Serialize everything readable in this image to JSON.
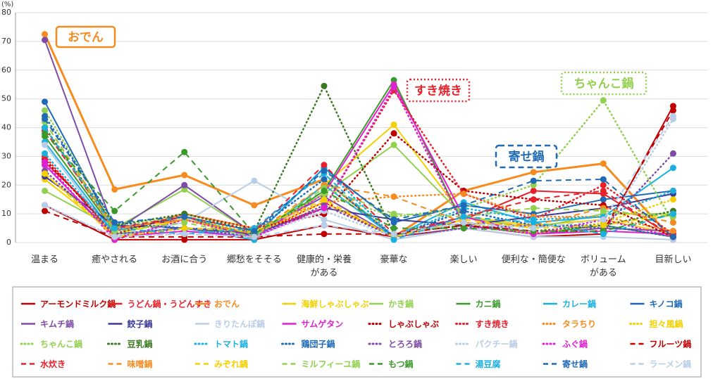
{
  "chart_data": {
    "type": "line",
    "y_unit": "(%)",
    "categories": [
      "温まる",
      "癒やされる",
      "お酒に合う",
      "郷愁をそそる",
      "健康的・栄養\nがある",
      "豪華な",
      "楽しい",
      "便利な・簡便な",
      "ボリューム\nがある",
      "目新しい"
    ],
    "ylim": [
      0,
      80
    ],
    "yticks": [
      0,
      10,
      20,
      30,
      40,
      50,
      60,
      70,
      80
    ],
    "grid": true,
    "annotations": [
      {
        "text": "おでん",
        "color": "#f68b1f",
        "style": "solid"
      },
      {
        "text": "すき焼き",
        "color": "#e8202a",
        "style": "dotted"
      },
      {
        "text": "ちゃんこ鍋",
        "color": "#92d050",
        "style": "dotted"
      },
      {
        "text": "寄せ鍋",
        "color": "#1f6ab5",
        "style": "dashed"
      }
    ],
    "series": [
      {
        "name": "アーモンドミルク鍋",
        "color": "#c00000",
        "style": "solid",
        "values": [
          13,
          1,
          1,
          1,
          6,
          2,
          5,
          2,
          3,
          47.5
        ]
      },
      {
        "name": "うどん鍋・うどんすき",
        "color": "#e8202a",
        "style": "solid",
        "values": [
          28,
          5,
          8,
          3,
          14,
          2,
          8,
          18,
          17,
          2
        ]
      },
      {
        "name": "おでん",
        "color": "#f68b1f",
        "style": "solid",
        "values": [
          72.5,
          18.5,
          23.5,
          13,
          22,
          2,
          18,
          24.5,
          27.5,
          1
        ]
      },
      {
        "name": "海鮮しゃぶしゃぶ",
        "color": "#f5d000",
        "style": "solid",
        "values": [
          22,
          3,
          8,
          2,
          20,
          41,
          9,
          6,
          8,
          3
        ]
      },
      {
        "name": "かき鍋",
        "color": "#92d050",
        "style": "solid",
        "values": [
          18,
          5,
          18.5,
          3,
          17,
          34,
          9,
          5,
          10,
          10
        ]
      },
      {
        "name": "カニ鍋",
        "color": "#3a9a2a",
        "style": "solid",
        "values": [
          37,
          4,
          9,
          2,
          18,
          56.5,
          6,
          3,
          6,
          2
        ]
      },
      {
        "name": "カレー鍋",
        "color": "#1ab0e0",
        "style": "solid",
        "values": [
          35,
          3,
          5,
          1,
          20,
          2,
          14,
          7,
          9,
          26
        ]
      },
      {
        "name": "キノコ鍋",
        "color": "#1f6ab5",
        "style": "solid",
        "values": [
          49,
          4,
          9,
          2,
          26,
          7,
          13,
          10,
          15,
          18
        ]
      },
      {
        "name": "キムチ鍋",
        "color": "#7e4ca8",
        "style": "solid",
        "values": [
          70.5,
          4,
          20,
          3,
          16,
          2,
          9,
          3,
          5,
          4
        ]
      },
      {
        "name": "餃子鍋",
        "color": "#3b3b9a",
        "style": "solid",
        "values": [
          23,
          6,
          5,
          3,
          12,
          8,
          6,
          9,
          12,
          17
        ]
      },
      {
        "name": "きりたんぽ鍋",
        "color": "#b8cde8",
        "style": "solid",
        "values": [
          34,
          2,
          7,
          21.5,
          8,
          1,
          5,
          2,
          2,
          1
        ]
      },
      {
        "name": "サムゲタン",
        "color": "#e020d0",
        "style": "solid",
        "values": [
          27,
          2,
          4,
          2,
          17,
          55,
          9,
          3,
          4,
          3
        ]
      },
      {
        "name": "しゃぶしゃぶ",
        "color": "#c00000",
        "style": "dotted",
        "values": [
          29,
          3,
          10,
          5,
          10,
          38,
          18,
          15,
          13,
          2
        ]
      },
      {
        "name": "すき焼き",
        "color": "#e8202a",
        "style": "dotted",
        "values": [
          30,
          2,
          5,
          4,
          12,
          53,
          17,
          8,
          20,
          3
        ]
      },
      {
        "name": "タラちり",
        "color": "#f68b1f",
        "style": "dotted",
        "values": [
          40,
          4,
          10,
          5,
          14,
          16,
          17,
          9,
          9,
          4
        ]
      },
      {
        "name": "担々風鍋",
        "color": "#f5d000",
        "style": "dotted",
        "values": [
          24,
          3,
          8,
          3,
          14,
          2,
          7,
          3,
          7,
          15
        ]
      },
      {
        "name": "ちゃんこ鍋",
        "color": "#92d050",
        "style": "dotted",
        "values": [
          46,
          6,
          9,
          3,
          17,
          9,
          12,
          20,
          49.5,
          7
        ]
      },
      {
        "name": "豆乳鍋",
        "color": "#3a7a20",
        "style": "dotted",
        "values": [
          40,
          6,
          10,
          4,
          54.5,
          3,
          6,
          4,
          6,
          11
        ]
      },
      {
        "name": "トマト鍋",
        "color": "#1ab0e0",
        "style": "dotted",
        "values": [
          31,
          3,
          5,
          2,
          26,
          2,
          12,
          8,
          9,
          18
        ]
      },
      {
        "name": "鶏団子鍋",
        "color": "#1f6ab5",
        "style": "dotted",
        "values": [
          44,
          7,
          5,
          4,
          22,
          2,
          11,
          6,
          6,
          2
        ]
      },
      {
        "name": "とろろ鍋",
        "color": "#7e4ca8",
        "style": "dotted",
        "values": [
          25,
          3,
          5,
          2,
          13,
          2,
          5,
          6,
          5,
          31
        ]
      },
      {
        "name": "パクチー鍋",
        "color": "#b8cde8",
        "style": "dotted",
        "values": [
          13,
          2,
          3,
          2,
          11,
          2,
          7,
          4,
          4,
          43
        ]
      },
      {
        "name": "ふぐ鍋",
        "color": "#e020d0",
        "style": "dotted",
        "values": [
          28,
          1,
          8,
          2,
          12,
          54,
          6,
          3,
          8,
          2
        ]
      },
      {
        "name": "フルーツ鍋",
        "color": "#c00000",
        "style": "dashed",
        "values": [
          11,
          2,
          2,
          2,
          3,
          3,
          6,
          4,
          4,
          46
        ]
      },
      {
        "name": "水炊き",
        "color": "#e8202a",
        "style": "dashed",
        "values": [
          39,
          5,
          9,
          4,
          27,
          3,
          9,
          15,
          18,
          2
        ]
      },
      {
        "name": "味噌鍋",
        "color": "#f68b1f",
        "style": "dashed",
        "values": [
          42,
          5,
          8,
          3,
          20,
          16,
          7,
          6,
          12,
          7
        ]
      },
      {
        "name": "みぞれ鍋",
        "color": "#f5d000",
        "style": "dashed",
        "values": [
          24,
          2,
          5,
          4,
          15,
          2,
          8,
          5,
          6,
          10
        ]
      },
      {
        "name": "ミルフィーユ鍋",
        "color": "#92d050",
        "style": "dashed",
        "values": [
          42,
          4,
          7,
          2,
          19,
          10,
          9,
          12,
          11,
          9
        ]
      },
      {
        "name": "もつ鍋",
        "color": "#3a9a2a",
        "style": "dashed",
        "values": [
          38,
          11,
          31.5,
          3,
          18,
          5,
          5,
          4,
          4,
          10
        ]
      },
      {
        "name": "湯豆腐",
        "color": "#1ab0e0",
        "style": "dashed",
        "values": [
          40,
          5,
          3,
          5,
          24,
          1,
          9,
          7,
          3,
          10
        ]
      },
      {
        "name": "寄せ鍋",
        "color": "#1f6ab5",
        "style": "dashed",
        "values": [
          43,
          7,
          9,
          4,
          25,
          8,
          13,
          21.5,
          22,
          2
        ]
      },
      {
        "name": "ラーメン鍋",
        "color": "#b8cde8",
        "style": "dashed",
        "values": [
          13,
          2,
          3,
          2,
          6,
          3,
          7,
          5,
          8,
          44
        ]
      }
    ]
  }
}
